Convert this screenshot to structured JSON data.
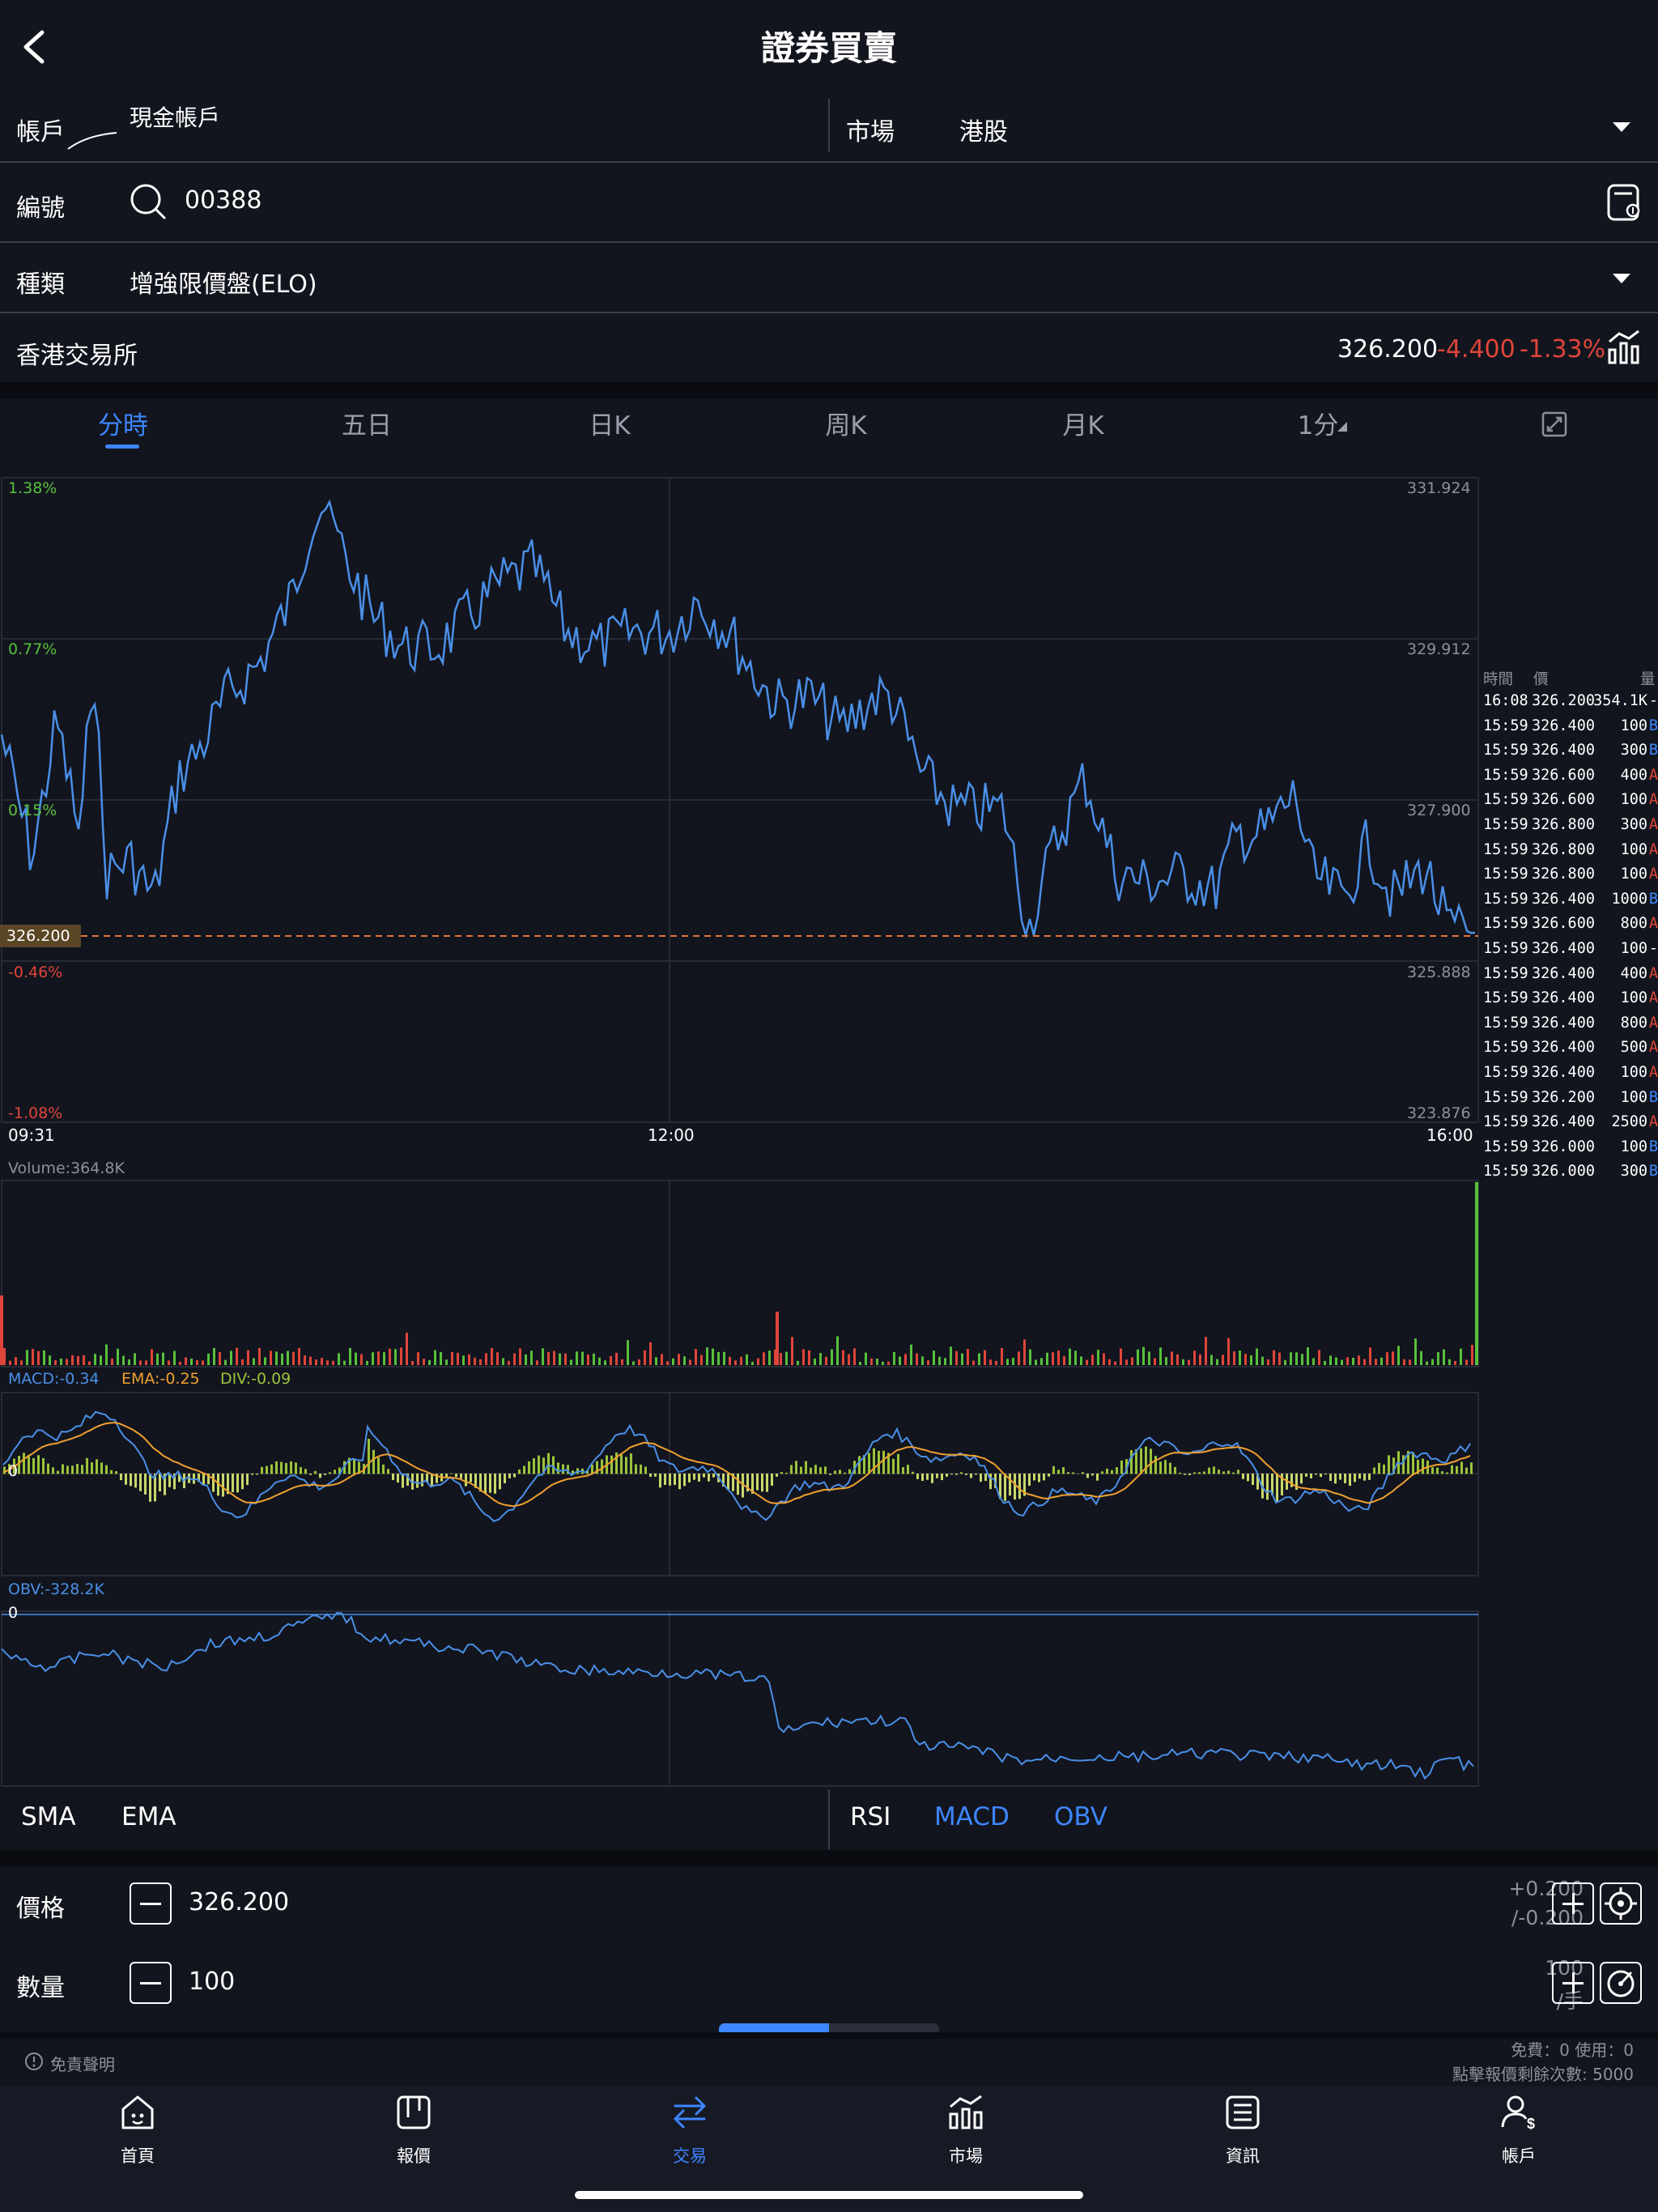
{
  "header": {
    "title": "證券買賣"
  },
  "form": {
    "account_label": "帳戶",
    "account_value": "現金帳戶",
    "market_label": "市場",
    "market_value": "港股",
    "code_label": "編號",
    "code_value": "00388",
    "type_label": "種類",
    "type_value": "增強限價盤(ELO)",
    "exchange": "香港交易所"
  },
  "quote": {
    "price": "326.200",
    "change": "-4.400",
    "change_pct": "-1.33%"
  },
  "tabs": [
    "分時",
    "五日",
    "日K",
    "周K",
    "月K",
    "1分"
  ],
  "chart_labels": {
    "pct_top": "1.38%",
    "pct_2": "0.77%",
    "pct_3": "0.15%",
    "pct_4": "-0.46%",
    "pct_5": "-1.08%",
    "price_top": "331.924",
    "price_2": "329.912",
    "price_3": "327.900",
    "price_4": "325.888",
    "price_5": "323.876",
    "current_price_tag": "326.200",
    "time_start": "09:31",
    "time_mid": "12:00",
    "time_end": "16:00",
    "volume": "Volume:364.8K",
    "macd": "MACD:-0.34",
    "ema": "EMA:-0.25",
    "div": "DIV:-0.09",
    "macd_zero": "0",
    "obv": "OBV:-328.2K",
    "obv_zero": "0"
  },
  "tick_header": {
    "time": "時間",
    "price": "價",
    "qty": "量"
  },
  "ticks": [
    {
      "t": "16:08",
      "p": "326.200",
      "q": "354.1K",
      "s": "-"
    },
    {
      "t": "15:59",
      "p": "326.400",
      "q": "100",
      "s": "B"
    },
    {
      "t": "15:59",
      "p": "326.400",
      "q": "300",
      "s": "B"
    },
    {
      "t": "15:59",
      "p": "326.600",
      "q": "400",
      "s": "A"
    },
    {
      "t": "15:59",
      "p": "326.600",
      "q": "100",
      "s": "A"
    },
    {
      "t": "15:59",
      "p": "326.800",
      "q": "300",
      "s": "A"
    },
    {
      "t": "15:59",
      "p": "326.800",
      "q": "100",
      "s": "A"
    },
    {
      "t": "15:59",
      "p": "326.800",
      "q": "100",
      "s": "A"
    },
    {
      "t": "15:59",
      "p": "326.400",
      "q": "1000",
      "s": "B"
    },
    {
      "t": "15:59",
      "p": "326.600",
      "q": "800",
      "s": "A"
    },
    {
      "t": "15:59",
      "p": "326.400",
      "q": "100",
      "s": "-"
    },
    {
      "t": "15:59",
      "p": "326.400",
      "q": "400",
      "s": "A"
    },
    {
      "t": "15:59",
      "p": "326.400",
      "q": "100",
      "s": "A"
    },
    {
      "t": "15:59",
      "p": "326.400",
      "q": "800",
      "s": "A"
    },
    {
      "t": "15:59",
      "p": "326.400",
      "q": "500",
      "s": "A"
    },
    {
      "t": "15:59",
      "p": "326.400",
      "q": "100",
      "s": "A"
    },
    {
      "t": "15:59",
      "p": "326.200",
      "q": "100",
      "s": "B"
    },
    {
      "t": "15:59",
      "p": "326.400",
      "q": "2500",
      "s": "A"
    },
    {
      "t": "15:59",
      "p": "326.000",
      "q": "100",
      "s": "B"
    },
    {
      "t": "15:59",
      "p": "326.000",
      "q": "300",
      "s": "B"
    }
  ],
  "indicators": {
    "main": [
      "SMA",
      "EMA"
    ],
    "sub": [
      "RSI",
      "MACD",
      "OBV"
    ]
  },
  "order": {
    "price_label": "價格",
    "price_value": "326.200",
    "price_step_up": "+0.200",
    "price_step_down": "/-0.200",
    "qty_label": "數量",
    "qty_value": "100",
    "qty_lot": "100",
    "qty_unit": "/手"
  },
  "footer": {
    "disclaimer": "免責聲明",
    "quota": "免費：0 使用：0",
    "remaining": "點擊報價剩餘次數: 5000"
  },
  "nav": [
    "首頁",
    "報價",
    "交易",
    "市場",
    "資訊",
    "帳戶"
  ],
  "colors": {
    "accent": "#3d86ff",
    "down": "#e0453a",
    "up": "#58c03b",
    "line": "#4a8fe7",
    "ema": "#f0a030",
    "bg": "#12151e"
  }
}
